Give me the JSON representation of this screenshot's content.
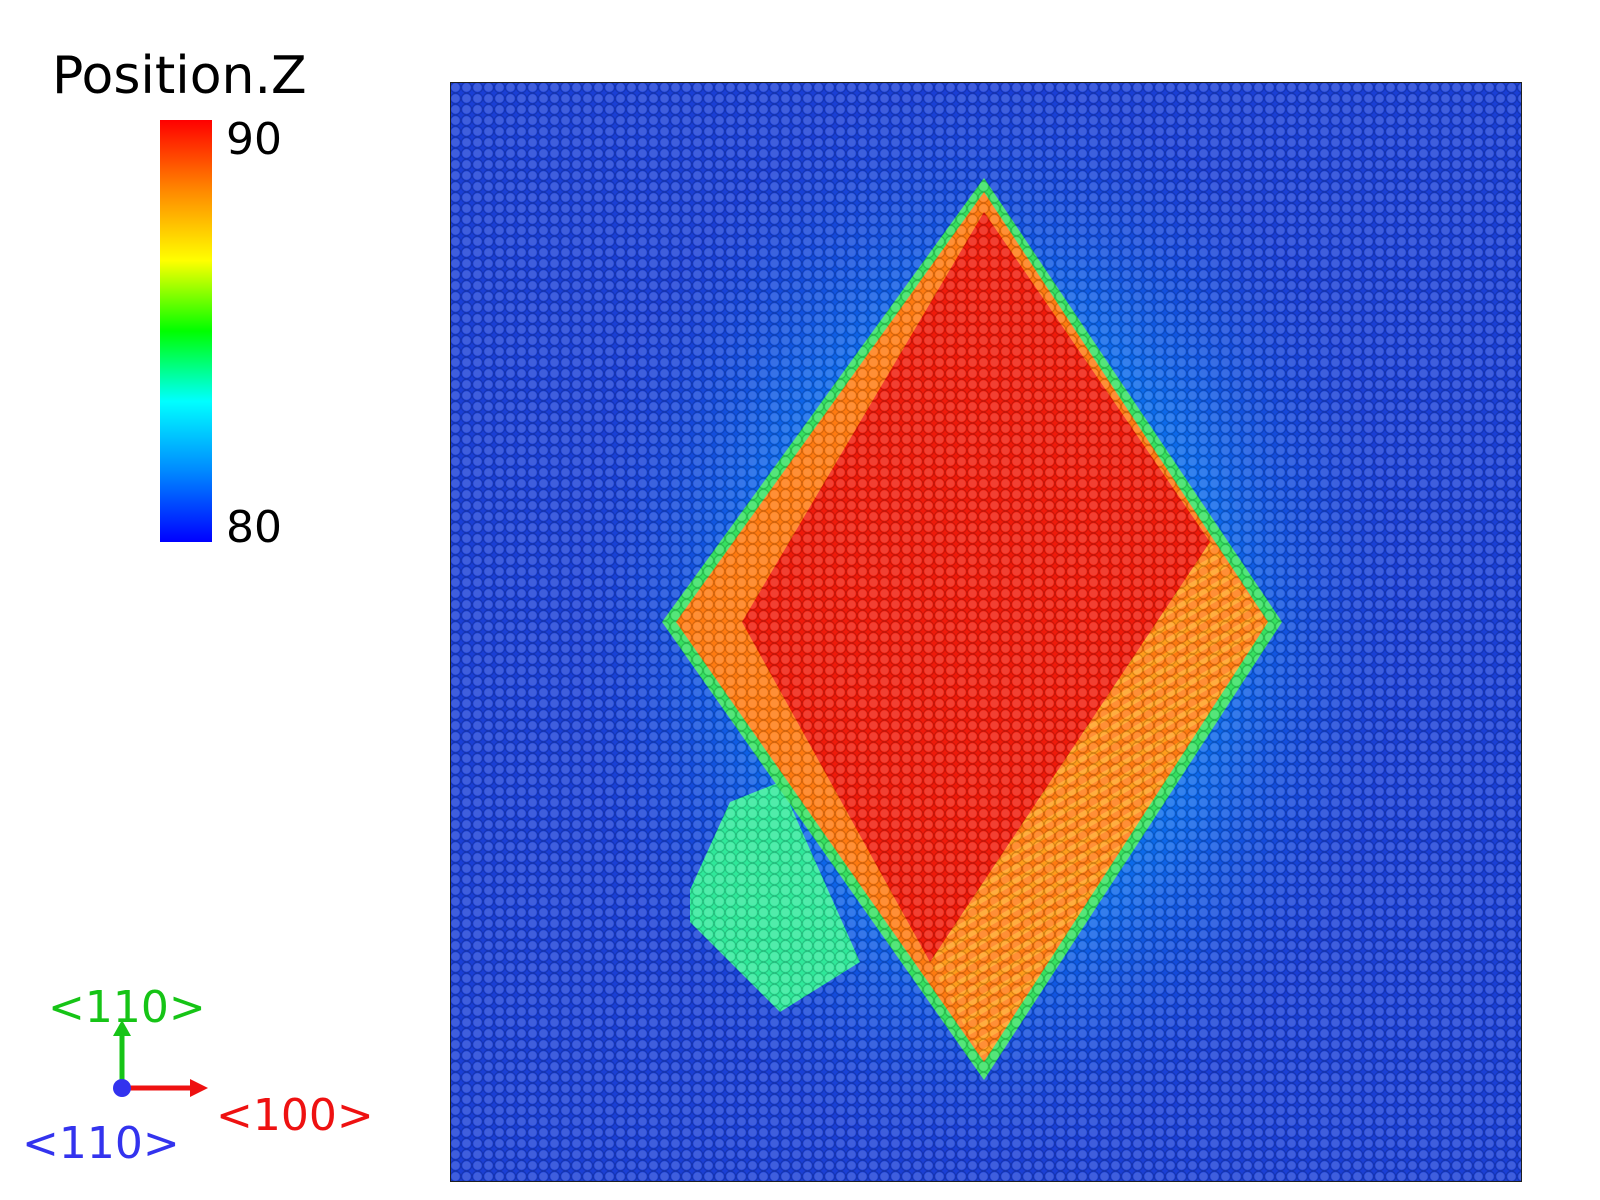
{
  "colorbar": {
    "title": "Position.Z",
    "max_label": "90",
    "min_label": "80",
    "colors": [
      "#ff0000",
      "#ff8800",
      "#ffff00",
      "#00ff00",
      "#00ffff",
      "#0088ff",
      "#0000ff"
    ]
  },
  "axes": {
    "y_label": "<110>",
    "x_label": "<100>",
    "z_label": "<110>",
    "y_color": "#16c416",
    "x_color": "#ee1111",
    "z_color": "#3333ee"
  },
  "simulation": {
    "background_color": "#1a3fd6",
    "halo_color": "#00b4ff",
    "rim_color": "#35e060",
    "core_color": "#f01a0a",
    "lower_band_color": "#ff7a10",
    "side_patch_color": "#2fe89a"
  }
}
